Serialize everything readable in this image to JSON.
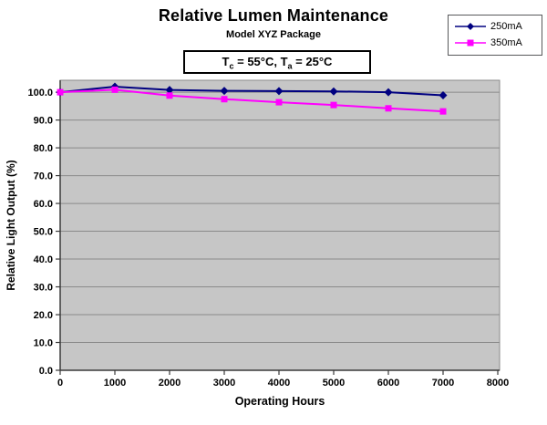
{
  "title": "Relative Lumen Maintenance",
  "subtitle": "Model XYZ Package",
  "annotation": {
    "text": "Tc = 55°C, Ta = 25°C",
    "t1": "T",
    "sub1": "c",
    "mid": " = 55°C, T",
    "sub2": "a",
    "end": " = 25°C"
  },
  "legend": {
    "position": "top-right",
    "entries": [
      {
        "label": "250mA",
        "color": "#000080",
        "marker": "diamond"
      },
      {
        "label": "350mA",
        "color": "#ff00ff",
        "marker": "square"
      }
    ]
  },
  "chart_data": {
    "type": "line",
    "title": "Relative Lumen Maintenance",
    "subtitle": "Model XYZ Package",
    "xlabel": "Operating Hours",
    "ylabel": "Relative Light Output (%)",
    "x": [
      0,
      1000,
      2000,
      3000,
      4000,
      5000,
      6000,
      7000
    ],
    "series": [
      {
        "name": "250mA",
        "color": "#000080",
        "marker": "diamond",
        "values": [
          100.0,
          102.0,
          100.8,
          100.5,
          100.4,
          100.3,
          100.0,
          98.9
        ]
      },
      {
        "name": "350mA",
        "color": "#ff00ff",
        "marker": "square",
        "values": [
          100.0,
          100.9,
          98.8,
          97.5,
          96.4,
          95.4,
          94.2,
          93.1
        ]
      }
    ],
    "xlim": [
      0,
      8000
    ],
    "ylim": [
      0,
      104.3
    ],
    "x_ticks": [
      "0",
      "1000",
      "2000",
      "3000",
      "4000",
      "5000",
      "6000",
      "7000",
      "8000"
    ],
    "y_ticks": [
      "0.0",
      "10.0",
      "20.0",
      "30.0",
      "40.0",
      "50.0",
      "60.0",
      "70.0",
      "80.0",
      "90.0",
      "100.0"
    ],
    "grid": true,
    "legend_position": "top-right",
    "plot_bg": "#c6c6c6",
    "grid_color": "#8a8a8a",
    "axis_color": "#3a3a3a"
  }
}
